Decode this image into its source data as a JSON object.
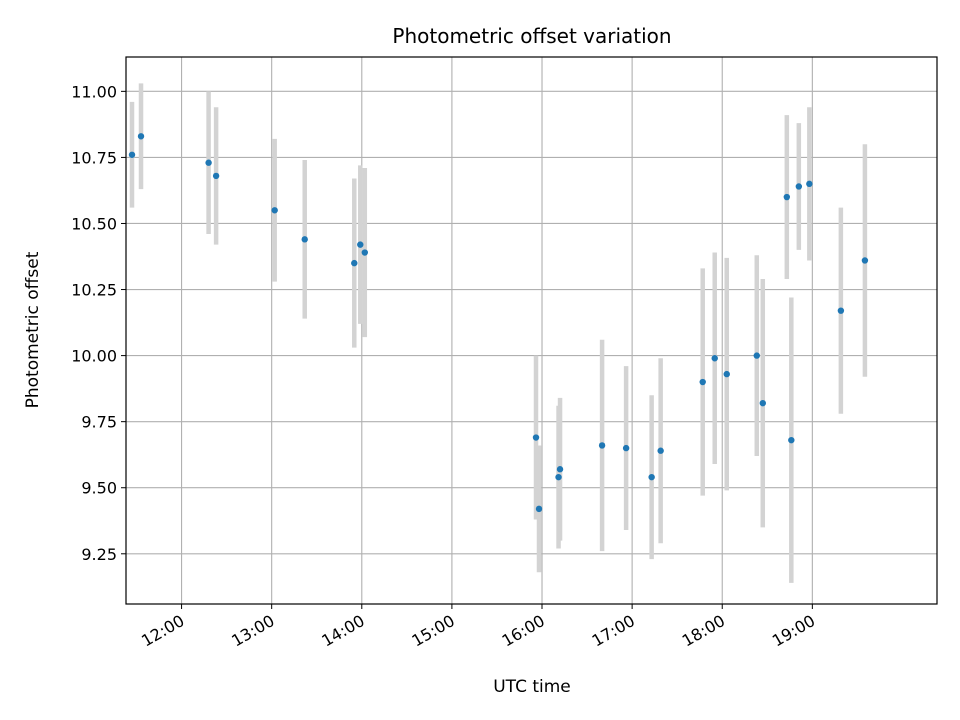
{
  "chart_data": {
    "type": "scatter",
    "title": "Photometric offset variation",
    "xlabel": "UTC time",
    "ylabel": "Photometric offset",
    "x_unit": "hours UTC",
    "xlim": [
      "11:23",
      "20:23"
    ],
    "ylim": [
      9.06,
      11.13
    ],
    "grid": true,
    "x_ticks": [
      {
        "value": "12:00",
        "label": "12:00"
      },
      {
        "value": "13:00",
        "label": "13:00"
      },
      {
        "value": "14:00",
        "label": "14:00"
      },
      {
        "value": "15:00",
        "label": "15:00"
      },
      {
        "value": "16:00",
        "label": "16:00"
      },
      {
        "value": "17:00",
        "label": "17:00"
      },
      {
        "value": "18:00",
        "label": "18:00"
      },
      {
        "value": "19:00",
        "label": "19:00"
      }
    ],
    "y_ticks": [
      {
        "value": 9.25,
        "label": "9.25"
      },
      {
        "value": 9.5,
        "label": "9.50"
      },
      {
        "value": 9.75,
        "label": "9.75"
      },
      {
        "value": 10.0,
        "label": "10.00"
      },
      {
        "value": 10.25,
        "label": "10.25"
      },
      {
        "value": 10.5,
        "label": "10.50"
      },
      {
        "value": 10.75,
        "label": "10.75"
      },
      {
        "value": 11.0,
        "label": "11.00"
      }
    ],
    "colors": {
      "point": "#1f77b4",
      "errorbar": "#d3d3d3",
      "grid": "#b0b0b0"
    },
    "series": [
      {
        "points": [
          {
            "x": "11:27",
            "y": 10.76,
            "yerr": 0.2
          },
          {
            "x": "11:33",
            "y": 10.83,
            "yerr": 0.2
          },
          {
            "x": "12:18",
            "y": 10.73,
            "yerr": 0.27
          },
          {
            "x": "12:23",
            "y": 10.68,
            "yerr": 0.26
          },
          {
            "x": "13:02",
            "y": 10.55,
            "yerr": 0.27
          },
          {
            "x": "13:22",
            "y": 10.44,
            "yerr": 0.3
          },
          {
            "x": "13:55",
            "y": 10.35,
            "yerr": 0.32
          },
          {
            "x": "13:59",
            "y": 10.42,
            "yerr": 0.3
          },
          {
            "x": "14:02",
            "y": 10.39,
            "yerr": 0.32
          },
          {
            "x": "15:56",
            "y": 9.69,
            "yerr": 0.31
          },
          {
            "x": "15:58",
            "y": 9.42,
            "yerr": 0.24
          },
          {
            "x": "16:11",
            "y": 9.54,
            "yerr": 0.27
          },
          {
            "x": "16:12",
            "y": 9.57,
            "yerr": 0.27
          },
          {
            "x": "16:40",
            "y": 9.66,
            "yerr": 0.4
          },
          {
            "x": "16:56",
            "y": 9.65,
            "yerr": 0.31
          },
          {
            "x": "17:13",
            "y": 9.54,
            "yerr": 0.31
          },
          {
            "x": "17:19",
            "y": 9.64,
            "yerr": 0.35
          },
          {
            "x": "17:47",
            "y": 9.9,
            "yerr": 0.43
          },
          {
            "x": "17:55",
            "y": 9.99,
            "yerr": 0.4
          },
          {
            "x": "18:03",
            "y": 9.93,
            "yerr": 0.44
          },
          {
            "x": "18:23",
            "y": 10.0,
            "yerr": 0.38
          },
          {
            "x": "18:27",
            "y": 9.82,
            "yerr": 0.47
          },
          {
            "x": "18:43",
            "y": 10.6,
            "yerr": 0.31
          },
          {
            "x": "18:46",
            "y": 9.68,
            "yerr": 0.54
          },
          {
            "x": "18:51",
            "y": 10.64,
            "yerr": 0.24
          },
          {
            "x": "18:58",
            "y": 10.65,
            "yerr": 0.29
          },
          {
            "x": "19:19",
            "y": 10.17,
            "yerr": 0.39
          },
          {
            "x": "19:35",
            "y": 10.36,
            "yerr": 0.44
          }
        ]
      }
    ]
  }
}
